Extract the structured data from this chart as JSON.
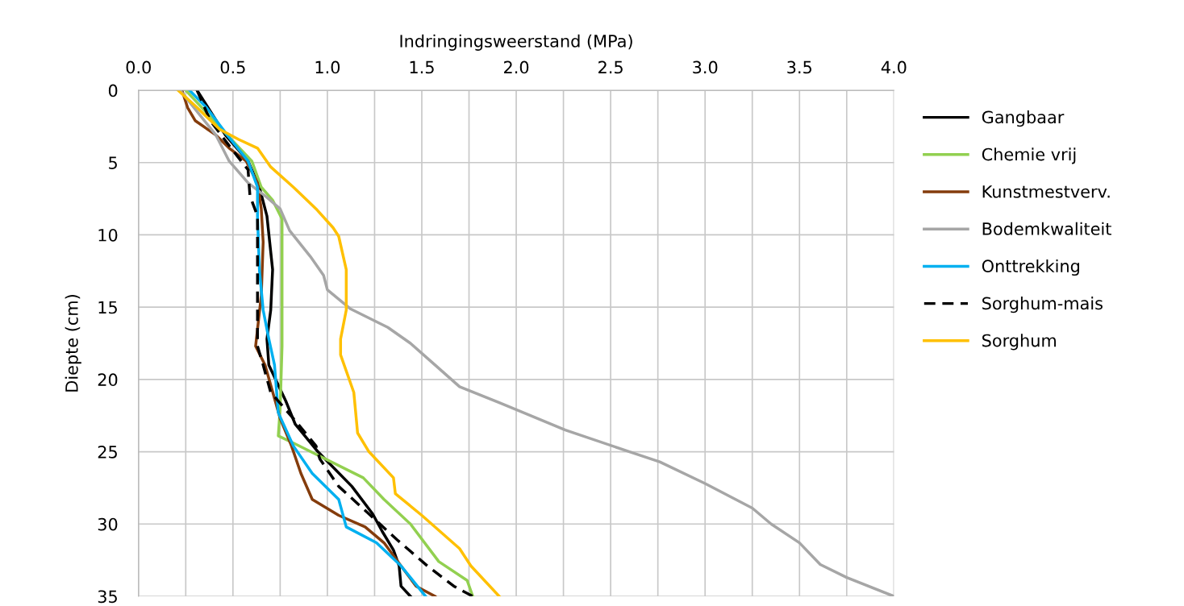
{
  "chart_data": {
    "type": "line",
    "orientation": "horizontal",
    "xlabel": "Indringingsweerstand (MPa)",
    "ylabel": "Diepte (cm)",
    "xlim": [
      0,
      4
    ],
    "ylim": [
      35,
      0
    ],
    "xticks": [
      {
        "value": 0,
        "label": "0.0"
      },
      {
        "value": 0.25,
        "label": null
      },
      {
        "value": 0.5,
        "label": "0.5"
      },
      {
        "value": 0.75,
        "label": null
      },
      {
        "value": 1,
        "label": "1.0"
      },
      {
        "value": 1.25,
        "label": null
      },
      {
        "value": 1.5,
        "label": "1.5"
      },
      {
        "value": 1.75,
        "label": null
      },
      {
        "value": 2,
        "label": "2.0"
      },
      {
        "value": 2.25,
        "label": null
      },
      {
        "value": 2.5,
        "label": "2.5"
      },
      {
        "value": 2.75,
        "label": null
      },
      {
        "value": 3,
        "label": "3.0"
      },
      {
        "value": 3.25,
        "label": null
      },
      {
        "value": 3.5,
        "label": "3.5"
      },
      {
        "value": 3.75,
        "label": null
      },
      {
        "value": 4,
        "label": "4.0"
      }
    ],
    "yticks": [
      0,
      5,
      10,
      15,
      20,
      25,
      30,
      35
    ],
    "grid": true,
    "legend": "right",
    "series": [
      {
        "name": "Gangbaar",
        "color": "#000000",
        "line_style": "solid",
        "x": [
          0,
          3.1,
          4.9,
          6.7,
          8.7,
          12.4,
          15.2,
          17.2,
          19,
          21.5,
          23.1,
          25,
          27.4,
          29.3,
          30.5,
          31.8,
          32.9,
          34.3,
          35
        ],
        "values": [
          0.31,
          0.46,
          0.58,
          0.64,
          0.68,
          0.71,
          0.7,
          0.68,
          0.69,
          0.78,
          0.83,
          0.95,
          1.13,
          1.24,
          1.29,
          1.35,
          1.38,
          1.39,
          1.44
        ]
      },
      {
        "name": "Chemie vrij",
        "color": "#92d050",
        "line_style": "solid",
        "x": [
          0,
          3.1,
          4.9,
          6.7,
          7.6,
          8.9,
          12.4,
          17.7,
          22,
          23.9,
          24.4,
          26.8,
          28.3,
          30,
          32.6,
          33.9,
          35
        ],
        "values": [
          0.25,
          0.47,
          0.6,
          0.65,
          0.71,
          0.76,
          0.76,
          0.76,
          0.75,
          0.74,
          0.82,
          1.19,
          1.3,
          1.44,
          1.59,
          1.74,
          1.77
        ]
      },
      {
        "name": "Kunstmestverv.",
        "color": "#843c0c",
        "line_style": "solid",
        "x": [
          0,
          1.2,
          2.1,
          3.1,
          4,
          4.9,
          6.4,
          8.2,
          10.5,
          14.2,
          17.7,
          19,
          22.7,
          24.6,
          26.5,
          28.3,
          29.4,
          30.2,
          31.3,
          32.9,
          34.3,
          35
        ],
        "values": [
          0.23,
          0.26,
          0.3,
          0.41,
          0.48,
          0.57,
          0.63,
          0.65,
          0.66,
          0.65,
          0.62,
          0.67,
          0.75,
          0.81,
          0.86,
          0.92,
          1.06,
          1.2,
          1.3,
          1.39,
          1.47,
          1.57
        ]
      },
      {
        "name": "Bodemkwaliteit",
        "color": "#a6a6a6",
        "line_style": "solid",
        "x": [
          0,
          3.1,
          4.9,
          6.4,
          7.3,
          8.2,
          9.7,
          11.5,
          12.8,
          13.8,
          15.1,
          16.4,
          17.5,
          19,
          20.5,
          21.6,
          23.5,
          25,
          25.7,
          27.2,
          28.9,
          30,
          31.3,
          32.8,
          33.7,
          35
        ],
        "values": [
          0.22,
          0.41,
          0.48,
          0.58,
          0.67,
          0.75,
          0.8,
          0.91,
          0.98,
          1.0,
          1.12,
          1.32,
          1.44,
          1.57,
          1.7,
          1.91,
          2.26,
          2.6,
          2.76,
          3.0,
          3.25,
          3.35,
          3.5,
          3.61,
          3.75,
          4.0
        ]
      },
      {
        "name": "Onttrekking",
        "color": "#00b0f0",
        "line_style": "solid",
        "x": [
          0,
          1.2,
          3.1,
          4.9,
          6.7,
          8.7,
          12.4,
          15.2,
          17.2,
          19,
          22.3,
          24.6,
          26.5,
          28.3,
          30.2,
          31.3,
          32.9,
          35
        ],
        "values": [
          0.27,
          0.36,
          0.47,
          0.58,
          0.63,
          0.63,
          0.64,
          0.66,
          0.69,
          0.72,
          0.74,
          0.82,
          0.92,
          1.06,
          1.1,
          1.26,
          1.39,
          1.52
        ]
      },
      {
        "name": "Sorghum-mais",
        "color": "#000000",
        "line_style": "dashed",
        "x": [
          0,
          2.1,
          4,
          5.5,
          7.3,
          8.7,
          11.5,
          14.2,
          17.7,
          19,
          20.9,
          22.7,
          24.6,
          25.5,
          27.4,
          29.3,
          31.1,
          32.9,
          34.3,
          35
        ],
        "values": [
          0.31,
          0.38,
          0.49,
          0.58,
          0.59,
          0.63,
          0.63,
          0.63,
          0.63,
          0.66,
          0.7,
          0.82,
          0.94,
          0.96,
          1.06,
          1.22,
          1.37,
          1.53,
          1.67,
          1.77
        ]
      },
      {
        "name": "Sorghum",
        "color": "#ffc000",
        "line_style": "solid",
        "x": [
          0,
          1.2,
          2.7,
          3.4,
          4,
          5.3,
          6.7,
          8.2,
          9.5,
          10.1,
          12.4,
          15.2,
          17.2,
          18.3,
          20.9,
          23.7,
          25,
          26.8,
          27.9,
          29.4,
          31.7,
          32.9,
          35
        ],
        "values": [
          0.21,
          0.31,
          0.43,
          0.53,
          0.63,
          0.7,
          0.82,
          0.94,
          1.03,
          1.06,
          1.1,
          1.1,
          1.07,
          1.07,
          1.14,
          1.16,
          1.22,
          1.35,
          1.36,
          1.5,
          1.7,
          1.76,
          1.91
        ]
      }
    ]
  }
}
